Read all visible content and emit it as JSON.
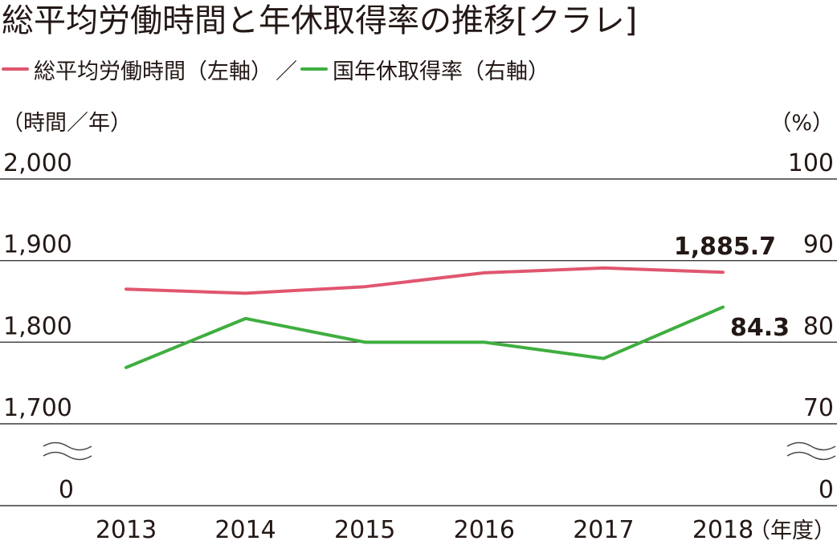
{
  "chart_data": {
    "type": "line",
    "title": "総平均労働時間と年休取得率の推移[クラレ]",
    "categories": [
      "2013",
      "2014",
      "2015",
      "2016",
      "2017",
      "2018"
    ],
    "x_unit": "（年度）",
    "y_left": {
      "unit": "（時間／年）",
      "ticks": [
        "2,000",
        "1,900",
        "1,800",
        "1,700",
        "0"
      ],
      "tick_values": [
        2000,
        1900,
        1800,
        1700
      ],
      "range": [
        1700,
        2000
      ],
      "broken_to_zero": true
    },
    "y_right": {
      "unit": "（%）",
      "ticks": [
        "100",
        "90",
        "80",
        "70",
        "0"
      ],
      "tick_values": [
        100,
        90,
        80,
        70
      ],
      "range": [
        70,
        100
      ],
      "broken_to_zero": true
    },
    "series": [
      {
        "name": "総平均労働時間（左軸）",
        "axis": "left",
        "color": "#e0566f",
        "values": [
          1865,
          1860,
          1868,
          1885,
          1891,
          1885.7
        ],
        "end_label": "1,885.7"
      },
      {
        "name": "国年休取得率（右軸）",
        "axis": "right",
        "color": "#3fae3f",
        "values": [
          76.9,
          82.9,
          80.0,
          80.0,
          78.0,
          84.3
        ],
        "end_label": "84.3"
      }
    ],
    "legend_separator": "／",
    "legend_position": "top-left",
    "grid": true
  }
}
